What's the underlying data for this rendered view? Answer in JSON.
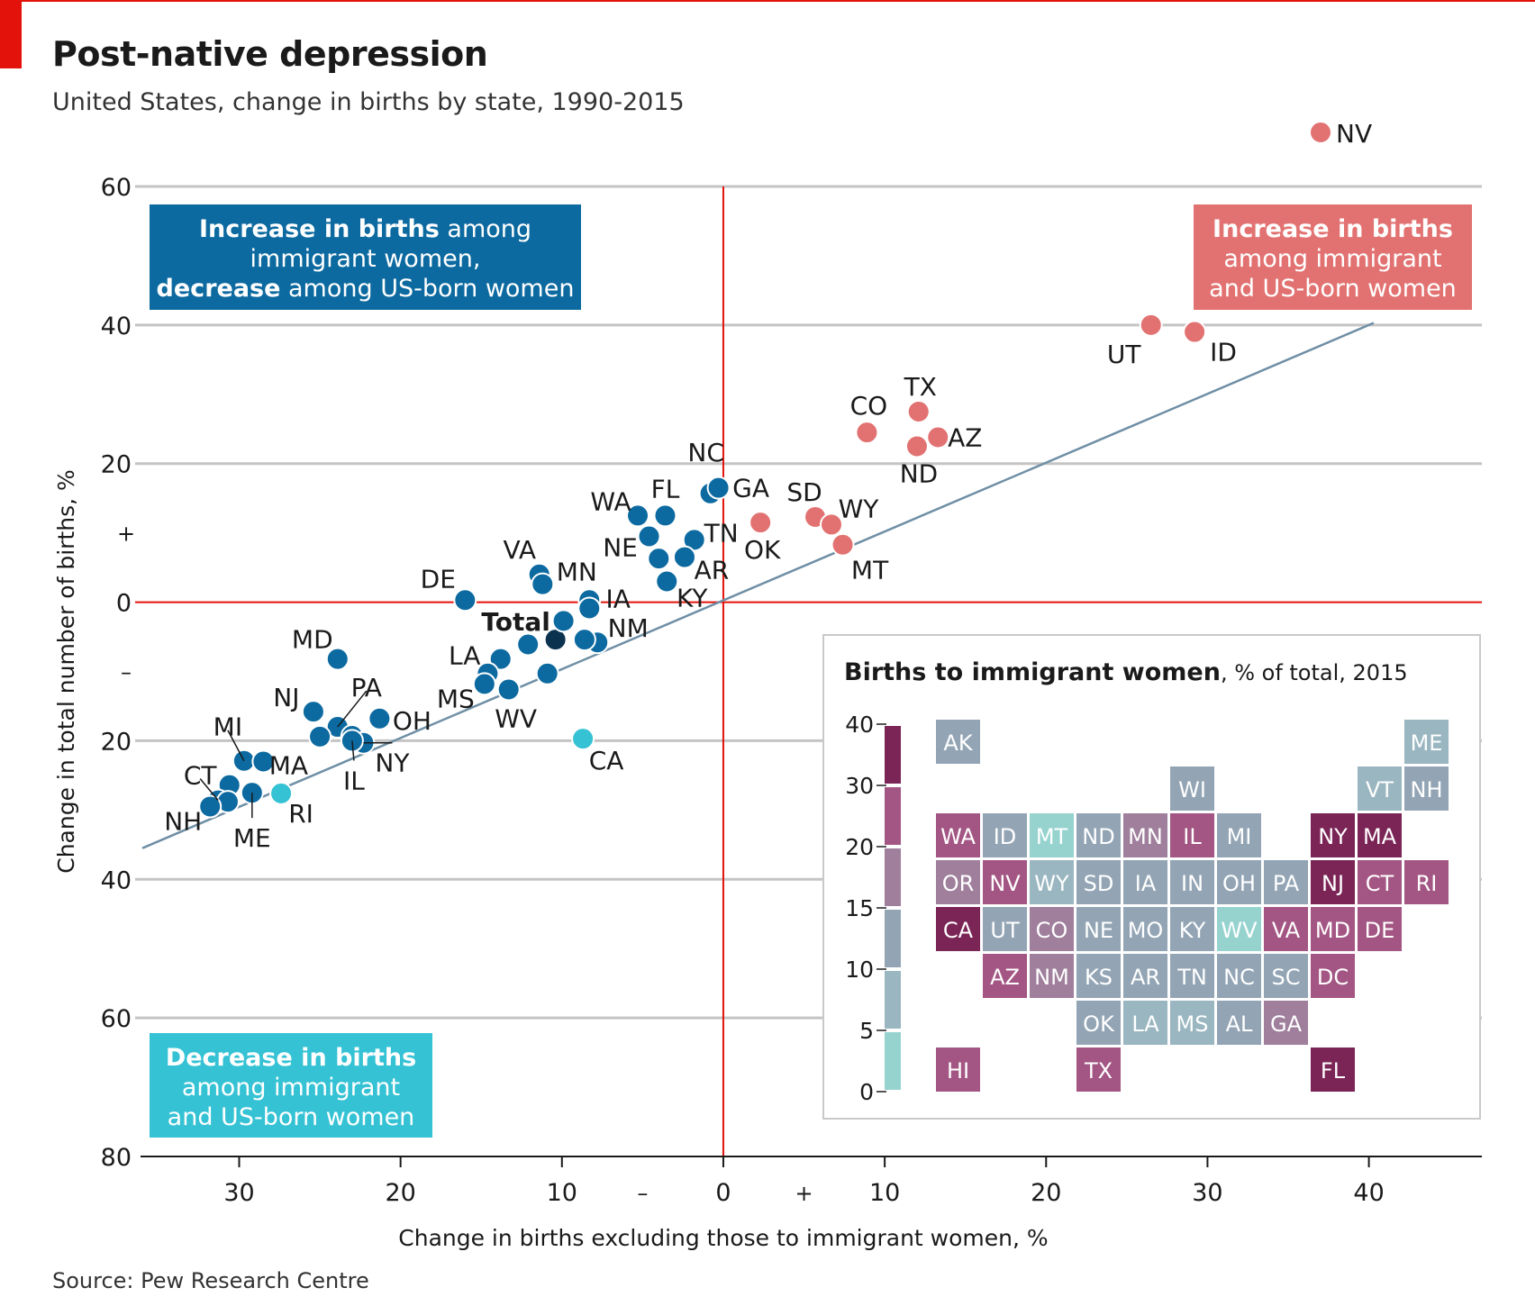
{
  "header": {
    "title": "Post-native depression",
    "subtitle": "United States, change in births by state, 1990-2015"
  },
  "footer": {
    "source": "Source: Pew Research Centre"
  },
  "colors": {
    "blue": "#0c6aa0",
    "pink": "#e27271",
    "cyan": "#34c2d4",
    "dark": "#0b3350",
    "red": "#e3120b",
    "trend": "#6f8fa5"
  },
  "boxes": {
    "blue_lines": [
      {
        "bold": "Increase in births",
        "rest": " among"
      },
      {
        "bold": "",
        "rest": "immigrant women,"
      },
      {
        "bold": "decrease",
        "rest": " among US-born women"
      }
    ],
    "pink_lines": [
      {
        "bold": "Increase in births",
        "rest": ""
      },
      {
        "bold": "",
        "rest": "among immigrant"
      },
      {
        "bold": "",
        "rest": "and US-born women"
      }
    ],
    "cyan_lines": [
      {
        "bold": "Decrease in births",
        "rest": ""
      },
      {
        "bold": "",
        "rest": "among immigrant"
      },
      {
        "bold": "",
        "rest": "and US-born women"
      }
    ]
  },
  "chart_data": [
    {
      "type": "scatter",
      "xlabel": "Change in births excluding those to immigrant women, %",
      "ylabel": "Change in total number of births, %",
      "xlim": [
        -36,
        47
      ],
      "ylim": [
        -80,
        60
      ],
      "x_ticks": [
        {
          "v": -30,
          "label": "30"
        },
        {
          "v": -20,
          "label": "20"
        },
        {
          "v": -10,
          "label": "10"
        },
        {
          "v": 0,
          "label": "0"
        },
        {
          "v": 10,
          "label": "10"
        },
        {
          "v": 20,
          "label": "20"
        },
        {
          "v": 30,
          "label": "30"
        },
        {
          "v": 40,
          "label": "40"
        }
      ],
      "x_signs": [
        {
          "v": -5,
          "label": "–"
        },
        {
          "v": 5,
          "label": "+"
        }
      ],
      "y_ticks": [
        {
          "v": 60,
          "label": "60"
        },
        {
          "v": 40,
          "label": "40"
        },
        {
          "v": 20,
          "label": "20"
        },
        {
          "v": 0,
          "label": "0"
        },
        {
          "v": -20,
          "label": "20"
        },
        {
          "v": -40,
          "label": "40"
        },
        {
          "v": -60,
          "label": "60"
        },
        {
          "v": -80,
          "label": "80"
        }
      ],
      "y_signs": [
        {
          "v": 10,
          "label": "+"
        },
        {
          "v": -10,
          "label": "–"
        }
      ],
      "trend_line": {
        "x": [
          -36,
          40.3
        ],
        "y": [
          -35.5,
          40.3
        ]
      },
      "nv_legend_point": {
        "label": "NV",
        "color": "pink"
      },
      "points": [
        {
          "label": "UT",
          "x": 26.5,
          "y": 40,
          "c": "pink",
          "lx": -30,
          "ly": 32
        },
        {
          "label": "ID",
          "x": 29.2,
          "y": 39,
          "c": "pink",
          "lx": 32,
          "ly": 22
        },
        {
          "label": "CO",
          "x": 8.9,
          "y": 24.5,
          "c": "pink",
          "lx": 2,
          "ly": -30
        },
        {
          "label": "TX",
          "x": 12.1,
          "y": 27.5,
          "c": "pink",
          "lx": 2,
          "ly": -28
        },
        {
          "label": "AZ",
          "x": 13.3,
          "y": 23.8,
          "c": "pink",
          "lx": 30,
          "ly": 0
        },
        {
          "label": "ND",
          "x": 12.0,
          "y": 22.5,
          "c": "pink",
          "lx": 2,
          "ly": 30
        },
        {
          "label": "OK",
          "x": 2.3,
          "y": 11.5,
          "c": "pink",
          "lx": 2,
          "ly": 30
        },
        {
          "label": "SD",
          "x": 5.7,
          "y": 12.3,
          "c": "pink",
          "lx": -12,
          "ly": -28
        },
        {
          "label": "WY",
          "x": 6.7,
          "y": 11.2,
          "c": "pink",
          "lx": 30,
          "ly": -18
        },
        {
          "label": "MT",
          "x": 7.4,
          "y": 8.3,
          "c": "pink",
          "lx": 30,
          "ly": 28
        },
        {
          "label": "NC",
          "x": -0.8,
          "y": 15.7,
          "c": "blue",
          "lx": -5,
          "ly": -46
        },
        {
          "label": "GA",
          "x": -0.3,
          "y": 16.5,
          "c": "blue",
          "lx": 36,
          "ly": 0
        },
        {
          "label": "WA",
          "x": -5.3,
          "y": 12.5,
          "c": "blue",
          "lx": -30,
          "ly": -16
        },
        {
          "label": "FL",
          "x": -3.6,
          "y": 12.5,
          "c": "blue",
          "lx": 0,
          "ly": -30
        },
        {
          "label": "NE",
          "x": -4.6,
          "y": 9.5,
          "c": "blue",
          "lx": -32,
          "ly": 12
        },
        {
          "label": "TN",
          "x": -1.8,
          "y": 9.0,
          "c": "blue",
          "lx": 30,
          "ly": -8
        },
        {
          "label": "AR",
          "x": -2.4,
          "y": 6.5,
          "c": "blue",
          "lx": 30,
          "ly": 14
        },
        {
          "label": "KY",
          "x": -3.5,
          "y": 3.0,
          "c": "blue",
          "lx": 28,
          "ly": 18
        },
        {
          "label": "",
          "x": -4.0,
          "y": 6.3,
          "c": "blue"
        },
        {
          "label": "VA",
          "x": -11.4,
          "y": 4.0,
          "c": "blue",
          "lx": -22,
          "ly": -28
        },
        {
          "label": "MN",
          "x": -11.2,
          "y": 2.6,
          "c": "blue",
          "lx": 38,
          "ly": -14
        },
        {
          "label": "IA",
          "x": -8.3,
          "y": 0.3,
          "c": "blue",
          "lx": 32,
          "ly": -2
        },
        {
          "label": "",
          "x": -8.3,
          "y": -0.9,
          "c": "blue"
        },
        {
          "label": "NM",
          "x": -7.8,
          "y": -5.8,
          "c": "blue",
          "lx": 34,
          "ly": -16
        },
        {
          "label": "",
          "x": -8.6,
          "y": -5.4,
          "c": "blue"
        },
        {
          "label": "DE",
          "x": -16.0,
          "y": 0.3,
          "c": "blue",
          "lx": -30,
          "ly": -24
        },
        {
          "label": "Total",
          "x": -10.4,
          "y": -5.4,
          "c": "dark",
          "lx": -44,
          "ly": -20,
          "bold": true
        },
        {
          "label": "",
          "x": -9.9,
          "y": -2.7,
          "c": "blue"
        },
        {
          "label": "",
          "x": -12.1,
          "y": -6.1,
          "c": "blue"
        },
        {
          "label": "LA",
          "x": -13.8,
          "y": -8.2,
          "c": "blue",
          "lx": -40,
          "ly": -4
        },
        {
          "label": "",
          "x": -14.6,
          "y": -10.3,
          "c": "blue"
        },
        {
          "label": "MS",
          "x": -14.8,
          "y": -11.8,
          "c": "blue",
          "lx": -32,
          "ly": 16
        },
        {
          "label": "WV",
          "x": -13.3,
          "y": -12.6,
          "c": "blue",
          "lx": 8,
          "ly": 32
        },
        {
          "label": "",
          "x": -10.9,
          "y": -10.3,
          "c": "blue"
        },
        {
          "label": "MD",
          "x": -23.9,
          "y": -8.2,
          "c": "blue",
          "lx": -28,
          "ly": -22
        },
        {
          "label": "PA",
          "x": -23.9,
          "y": -18.0,
          "c": "blue",
          "lx": 32,
          "ly": -44,
          "leader": true
        },
        {
          "label": "OH",
          "x": -21.3,
          "y": -16.8,
          "c": "blue",
          "lx": 36,
          "ly": 2
        },
        {
          "label": "NJ",
          "x": -25.4,
          "y": -15.8,
          "c": "blue",
          "lx": -30,
          "ly": -16
        },
        {
          "label": "",
          "x": -25.0,
          "y": -19.4,
          "c": "blue"
        },
        {
          "label": "",
          "x": -23.0,
          "y": -19.3,
          "c": "blue"
        },
        {
          "label": "NY",
          "x": -22.3,
          "y": -20.3,
          "c": "blue",
          "lx": 32,
          "ly": 22,
          "leader": true
        },
        {
          "label": "IL",
          "x": -23.0,
          "y": -20.0,
          "c": "blue",
          "lx": 2,
          "ly": 44,
          "leader": true
        },
        {
          "label": "MI",
          "x": -29.7,
          "y": -22.9,
          "c": "blue",
          "lx": -18,
          "ly": -38,
          "leader": true
        },
        {
          "label": "MA",
          "x": -28.5,
          "y": -23.0,
          "c": "blue",
          "lx": 28,
          "ly": 4
        },
        {
          "label": "RI",
          "x": -27.4,
          "y": -27.6,
          "c": "cyan",
          "lx": 22,
          "ly": 22
        },
        {
          "label": "ME",
          "x": -29.2,
          "y": -27.5,
          "c": "blue",
          "lx": 0,
          "ly": 50,
          "leader": true
        },
        {
          "label": "",
          "x": -30.6,
          "y": -26.4,
          "c": "blue"
        },
        {
          "label": "CT",
          "x": -31.3,
          "y": -28.6,
          "c": "blue",
          "lx": -20,
          "ly": -28,
          "leader": true
        },
        {
          "label": "",
          "x": -30.7,
          "y": -28.8,
          "c": "blue"
        },
        {
          "label": "NH",
          "x": -31.8,
          "y": -29.5,
          "c": "blue",
          "lx": -30,
          "ly": 16
        },
        {
          "label": "CA",
          "x": -8.7,
          "y": -19.7,
          "c": "cyan",
          "lx": 26,
          "ly": 24
        }
      ]
    },
    {
      "type": "heatmap",
      "title_bold": "Births to immigrant women",
      "title_rest": ", % of total, 2015",
      "scale_ticks": [
        "40",
        "30",
        "20",
        "15",
        "10",
        "5",
        "0"
      ],
      "scale_colors": [
        "#7b2456",
        "#a35683",
        "#9f7f9c",
        "#93a5b5",
        "#9ab6c0",
        "#96d3cf"
      ],
      "tiles": [
        {
          "s": "AK",
          "col": 0,
          "row": 0,
          "c": "#93a5b5"
        },
        {
          "s": "ME",
          "col": 10,
          "row": 0,
          "c": "#9ab6c0"
        },
        {
          "s": "WI",
          "col": 5,
          "row": 1,
          "c": "#93a5b5"
        },
        {
          "s": "VT",
          "col": 9,
          "row": 1,
          "c": "#9ab6c0"
        },
        {
          "s": "NH",
          "col": 10,
          "row": 1,
          "c": "#93a5b5"
        },
        {
          "s": "WA",
          "col": 0,
          "row": 2,
          "c": "#a35683"
        },
        {
          "s": "ID",
          "col": 1,
          "row": 2,
          "c": "#93a5b5"
        },
        {
          "s": "MT",
          "col": 2,
          "row": 2,
          "c": "#96d3cf"
        },
        {
          "s": "ND",
          "col": 3,
          "row": 2,
          "c": "#93a5b5"
        },
        {
          "s": "MN",
          "col": 4,
          "row": 2,
          "c": "#9f7f9c"
        },
        {
          "s": "IL",
          "col": 5,
          "row": 2,
          "c": "#a35683"
        },
        {
          "s": "MI",
          "col": 6,
          "row": 2,
          "c": "#93a5b5"
        },
        {
          "s": "NY",
          "col": 8,
          "row": 2,
          "c": "#7b2456"
        },
        {
          "s": "MA",
          "col": 9,
          "row": 2,
          "c": "#7b2456"
        },
        {
          "s": "OR",
          "col": 0,
          "row": 3,
          "c": "#9f7f9c"
        },
        {
          "s": "NV",
          "col": 1,
          "row": 3,
          "c": "#a35683"
        },
        {
          "s": "WY",
          "col": 2,
          "row": 3,
          "c": "#9ab6c0"
        },
        {
          "s": "SD",
          "col": 3,
          "row": 3,
          "c": "#93a5b5"
        },
        {
          "s": "IA",
          "col": 4,
          "row": 3,
          "c": "#93a5b5"
        },
        {
          "s": "IN",
          "col": 5,
          "row": 3,
          "c": "#93a5b5"
        },
        {
          "s": "OH",
          "col": 6,
          "row": 3,
          "c": "#93a5b5"
        },
        {
          "s": "PA",
          "col": 7,
          "row": 3,
          "c": "#93a5b5"
        },
        {
          "s": "NJ",
          "col": 8,
          "row": 3,
          "c": "#7b2456"
        },
        {
          "s": "CT",
          "col": 9,
          "row": 3,
          "c": "#a35683"
        },
        {
          "s": "RI",
          "col": 10,
          "row": 3,
          "c": "#a35683"
        },
        {
          "s": "CA",
          "col": 0,
          "row": 4,
          "c": "#7b2456"
        },
        {
          "s": "UT",
          "col": 1,
          "row": 4,
          "c": "#93a5b5"
        },
        {
          "s": "CO",
          "col": 2,
          "row": 4,
          "c": "#9f7f9c"
        },
        {
          "s": "NE",
          "col": 3,
          "row": 4,
          "c": "#93a5b5"
        },
        {
          "s": "MO",
          "col": 4,
          "row": 4,
          "c": "#93a5b5"
        },
        {
          "s": "KY",
          "col": 5,
          "row": 4,
          "c": "#93a5b5"
        },
        {
          "s": "WV",
          "col": 6,
          "row": 4,
          "c": "#96d3cf"
        },
        {
          "s": "VA",
          "col": 7,
          "row": 4,
          "c": "#a35683"
        },
        {
          "s": "MD",
          "col": 8,
          "row": 4,
          "c": "#a35683"
        },
        {
          "s": "DE",
          "col": 9,
          "row": 4,
          "c": "#a35683"
        },
        {
          "s": "AZ",
          "col": 1,
          "row": 5,
          "c": "#a35683"
        },
        {
          "s": "NM",
          "col": 2,
          "row": 5,
          "c": "#9f7f9c"
        },
        {
          "s": "KS",
          "col": 3,
          "row": 5,
          "c": "#93a5b5"
        },
        {
          "s": "AR",
          "col": 4,
          "row": 5,
          "c": "#93a5b5"
        },
        {
          "s": "TN",
          "col": 5,
          "row": 5,
          "c": "#93a5b5"
        },
        {
          "s": "NC",
          "col": 6,
          "row": 5,
          "c": "#93a5b5"
        },
        {
          "s": "SC",
          "col": 7,
          "row": 5,
          "c": "#93a5b5"
        },
        {
          "s": "DC",
          "col": 8,
          "row": 5,
          "c": "#a35683"
        },
        {
          "s": "OK",
          "col": 3,
          "row": 6,
          "c": "#93a5b5"
        },
        {
          "s": "LA",
          "col": 4,
          "row": 6,
          "c": "#9ab6c0"
        },
        {
          "s": "MS",
          "col": 5,
          "row": 6,
          "c": "#9ab6c0"
        },
        {
          "s": "AL",
          "col": 6,
          "row": 6,
          "c": "#93a5b5"
        },
        {
          "s": "GA",
          "col": 7,
          "row": 6,
          "c": "#9f7f9c"
        },
        {
          "s": "HI",
          "col": 0,
          "row": 7,
          "c": "#a35683"
        },
        {
          "s": "TX",
          "col": 3,
          "row": 7,
          "c": "#a35683"
        },
        {
          "s": "FL",
          "col": 8,
          "row": 7,
          "c": "#7b2456"
        }
      ]
    }
  ]
}
